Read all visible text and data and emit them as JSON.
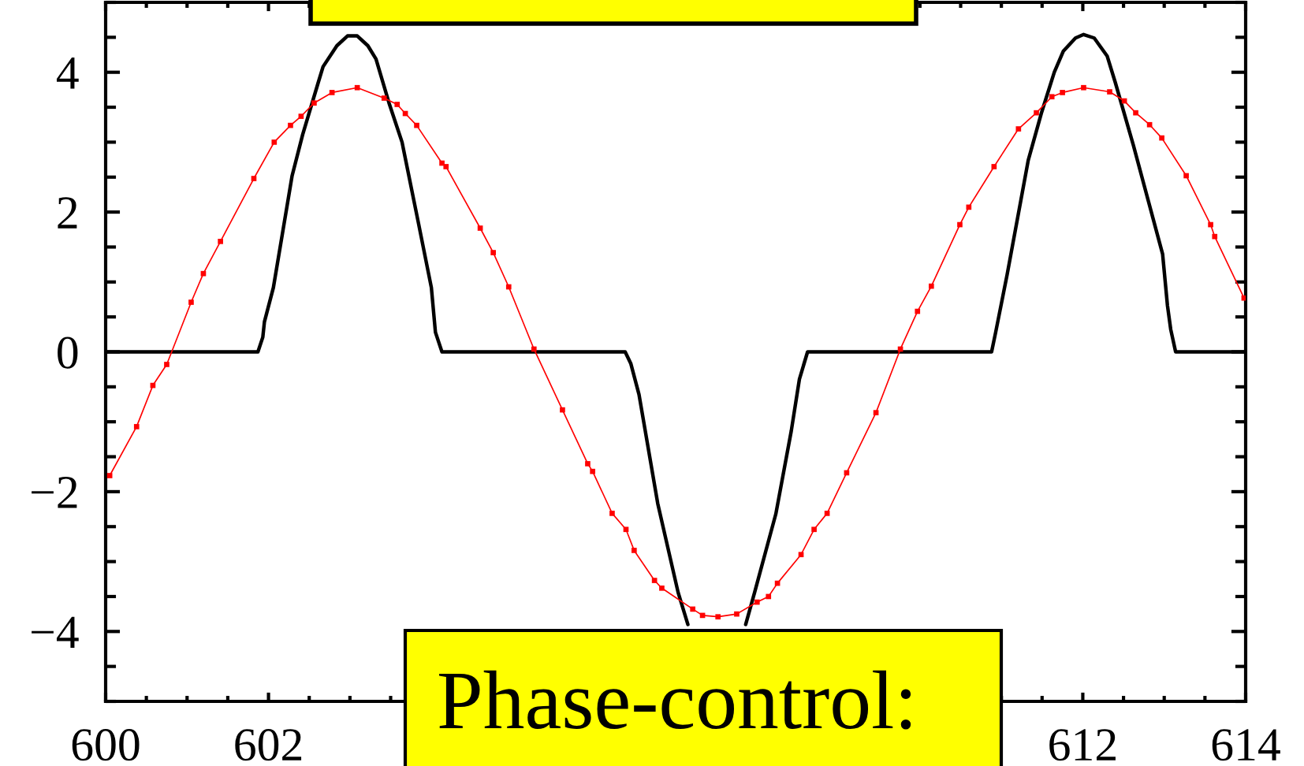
{
  "chart_data": {
    "type": "line",
    "xlim": [
      600,
      614
    ],
    "ylim": [
      -5,
      5
    ],
    "xticks": [
      600,
      602,
      612,
      614
    ],
    "yticks": [
      {
        "value": -4,
        "label": "−4"
      },
      {
        "value": -2,
        "label": "−2"
      },
      0,
      2,
      4
    ],
    "annotations": [
      "Phase-control:"
    ],
    "series": [
      {
        "color": "#000000",
        "marker": "none",
        "x": [
          600,
          601.87,
          601.93,
          601.95,
          602.06,
          602.29,
          602.42,
          602.61,
          602.67,
          602.84,
          602.97,
          603.09,
          603.22,
          603.32,
          603.48,
          603.64,
          603.84,
          604.0,
          604.05,
          604.13,
          606.38,
          606.45,
          606.55,
          606.78,
          607.03,
          607.15,
          607.5,
          607.86,
          607.97,
          608.23,
          608.42,
          608.52,
          608.62,
          610.88,
          610.93,
          611.07,
          611.33,
          611.49,
          611.65,
          611.76,
          611.91,
          612.01,
          612.14,
          612.3,
          612.4,
          612.62,
          612.98,
          613.04,
          613.08,
          613.14,
          614
        ],
        "values": [
          0,
          0,
          0.21,
          0.43,
          0.92,
          2.52,
          3.11,
          3.85,
          4.08,
          4.38,
          4.52,
          4.52,
          4.38,
          4.19,
          3.56,
          3.0,
          1.85,
          0.92,
          0.28,
          0,
          0,
          -0.17,
          -0.61,
          -2.17,
          -3.44,
          -3.9,
          null,
          -3.9,
          -3.44,
          -2.32,
          -1.13,
          -0.39,
          0,
          0,
          0.28,
          1.1,
          2.74,
          3.41,
          4.0,
          4.3,
          4.49,
          4.54,
          4.49,
          4.23,
          3.85,
          2.96,
          1.4,
          0.66,
          0.32,
          0,
          0
        ]
      },
      {
        "color": "#ff0000",
        "marker": "square",
        "x": [
          600.05,
          600.38,
          600.58,
          600.75,
          601.05,
          601.2,
          601.41,
          601.82,
          602.07,
          602.27,
          602.4,
          602.56,
          602.78,
          603.09,
          603.42,
          603.58,
          603.68,
          603.82,
          604.13,
          604.18,
          604.6,
          604.76,
          604.95,
          605.26,
          605.61,
          605.92,
          605.98,
          606.22,
          606.39,
          606.49,
          606.74,
          606.83,
          607.21,
          607.33,
          607.52,
          607.75,
          608.0,
          608.14,
          608.25,
          608.54,
          608.7,
          608.86,
          609.1,
          609.46,
          609.76,
          609.97,
          610.14,
          610.49,
          610.6,
          610.91,
          611.21,
          611.43,
          611.62,
          611.75,
          612.01,
          612.33,
          612.51,
          612.65,
          612.82,
          612.97,
          613.27,
          613.57,
          613.62,
          613.98
        ],
        "values": [
          -1.77,
          -1.07,
          -0.48,
          -0.18,
          0.71,
          1.12,
          1.58,
          2.48,
          3.0,
          3.24,
          3.37,
          3.56,
          3.71,
          3.78,
          3.63,
          3.54,
          3.41,
          3.24,
          2.7,
          2.65,
          1.77,
          1.42,
          0.93,
          0.04,
          -0.83,
          -1.6,
          -1.71,
          -2.31,
          -2.54,
          -2.84,
          -3.27,
          -3.38,
          -3.68,
          -3.77,
          -3.79,
          -3.75,
          -3.58,
          -3.5,
          -3.31,
          -2.9,
          -2.54,
          -2.31,
          -1.73,
          -0.87,
          0.04,
          0.58,
          0.94,
          1.82,
          2.07,
          2.65,
          3.19,
          3.42,
          3.65,
          3.71,
          3.78,
          3.72,
          3.59,
          3.42,
          3.25,
          3.06,
          2.52,
          1.82,
          1.65,
          0.77
        ]
      }
    ]
  }
}
